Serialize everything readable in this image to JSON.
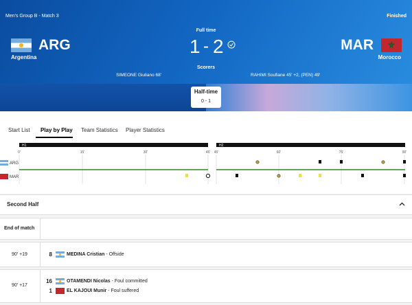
{
  "header": {
    "match": "Men's Group B - Match 3",
    "status": "Finished",
    "score_title": "Full time",
    "home": {
      "code": "ARG",
      "name": "Argentina",
      "score": 1,
      "scorers": "SIMEONE Giuliano 68'"
    },
    "away": {
      "code": "MAR",
      "name": "Morocco",
      "score": 2,
      "scorers": "RAHIMI Soufiane 45' +2, (PEN) 49'"
    },
    "separator": "-",
    "scorers_title": "Scorers",
    "halftime": {
      "label": "Half-time",
      "score": "0 - 1"
    }
  },
  "tabs": [
    "Start List",
    "Play by Play",
    "Team Statistics",
    "Player Statistics"
  ],
  "timeline": {
    "first_half": {
      "label": "H1",
      "ticks": [
        "0'",
        "15'",
        "30'",
        "45'"
      ]
    },
    "second_half": {
      "label": "H2",
      "ticks": [
        "45'",
        "60'",
        "75'",
        "90'"
      ]
    },
    "teams": [
      "ARG",
      "MAR"
    ]
  },
  "section": {
    "title": "Second Half"
  },
  "rows": [
    {
      "minute": "End of match"
    },
    {
      "minute": "90' +19",
      "events": [
        {
          "number": 8,
          "team": "ARG",
          "player": "MEDINA Cristian",
          "action": "- Offside"
        }
      ]
    },
    {
      "minute": "90' +17",
      "events": [
        {
          "number": 16,
          "team": "ARG",
          "player": "OTAMENDI Nicolas",
          "action": "- Foul committed"
        },
        {
          "number": 1,
          "team": "MAR",
          "player": "EL KAJOUI Munir",
          "action": "- Foul suffered"
        }
      ]
    }
  ]
}
